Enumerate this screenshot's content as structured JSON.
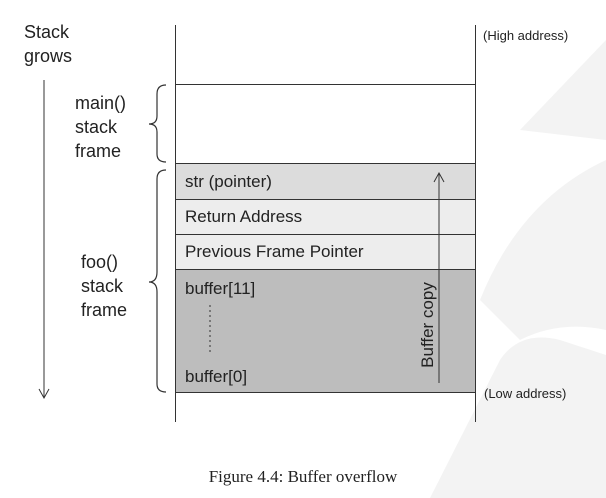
{
  "stack_grows": {
    "line1": "Stack",
    "line2": "grows"
  },
  "frames": {
    "main": {
      "line1": "main()",
      "line2": "stack",
      "line3": "frame"
    },
    "foo": {
      "line1": "foo()",
      "line2": "stack",
      "line3": "frame"
    }
  },
  "addresses": {
    "high": "(High address)",
    "low": "(Low address)"
  },
  "cells": {
    "str": "str (pointer)",
    "return_address": "Return Address",
    "previous_frame_pointer": "Previous Frame Pointer",
    "buffer_top": "buffer[11]",
    "buffer_bottom": "buffer[0]"
  },
  "buffer_copy_label": "Buffer copy",
  "caption": "Figure 4.4: Buffer overflow",
  "colors": {
    "str_cell": "#dcdcdc",
    "light_cell": "#ededed",
    "buffer_cell": "#bdbdbd",
    "watermark": "#f3f3f3"
  }
}
